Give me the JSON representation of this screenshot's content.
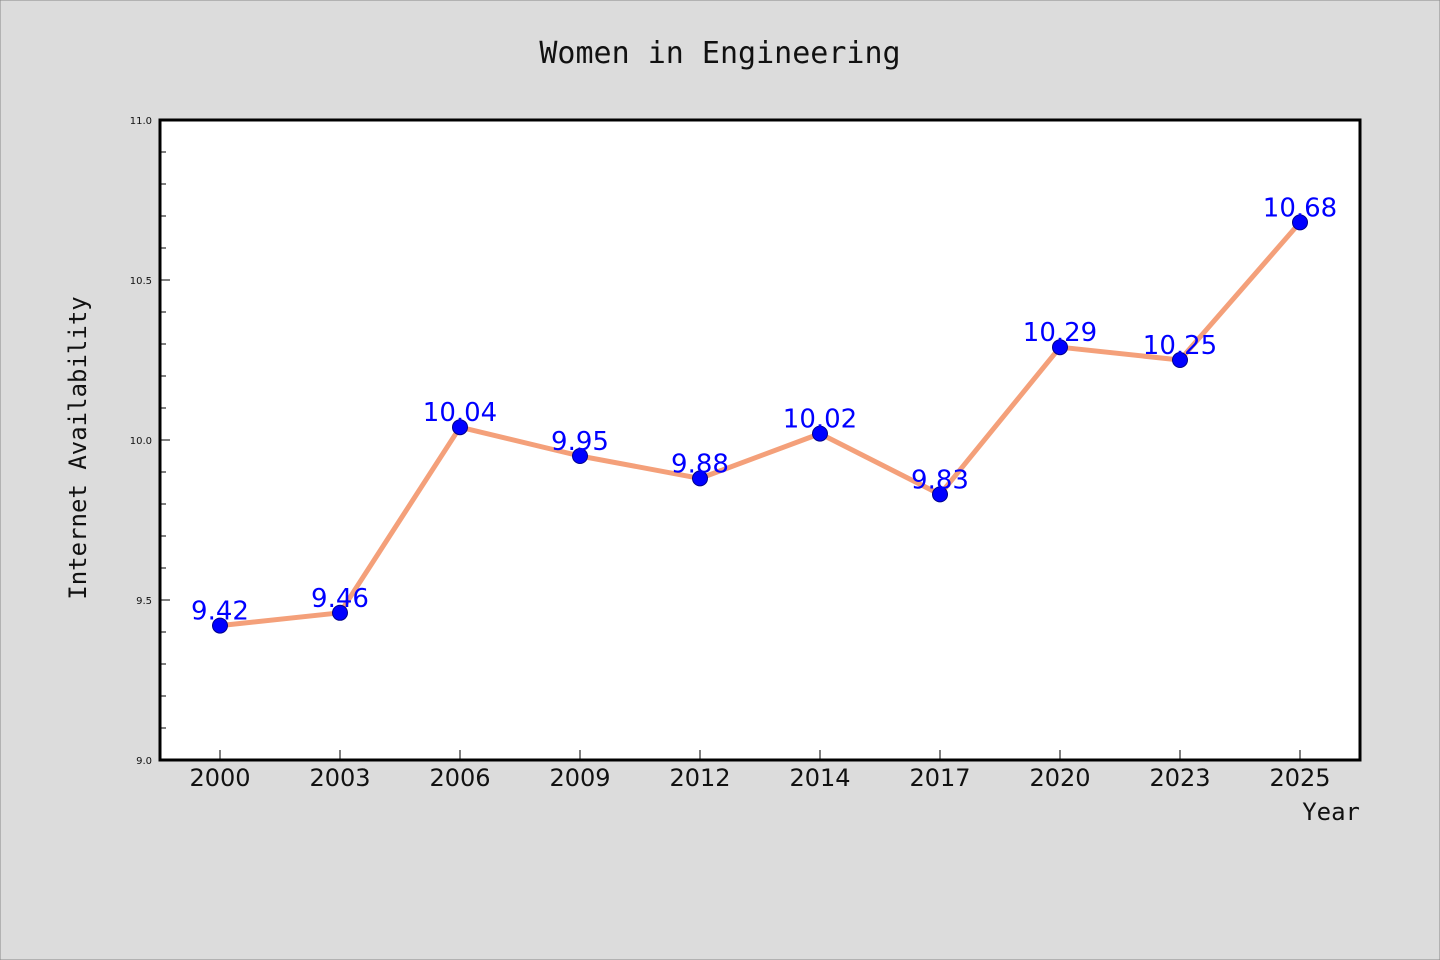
{
  "chart_data": {
    "type": "line",
    "title": "Women in Engineering",
    "xlabel": "Year",
    "ylabel": "Internet Availability",
    "categories": [
      "2000",
      "2003",
      "2006",
      "2009",
      "2012",
      "2014",
      "2017",
      "2020",
      "2023",
      "2025"
    ],
    "values": [
      9.42,
      9.46,
      10.04,
      9.95,
      9.88,
      10.02,
      9.83,
      10.29,
      10.25,
      10.68
    ],
    "data_labels": [
      "9.42",
      "9.46",
      "10.04",
      "9.95",
      "9.88",
      "10.02",
      "9.83",
      "10.29",
      "10.25",
      "10.68"
    ],
    "ylim": [
      9.0,
      11.0
    ],
    "yticks": [
      9.0,
      9.5,
      10.0,
      10.5,
      11.0
    ],
    "ytick_labels": [
      "9.0",
      "9.5",
      "10.0",
      "10.5",
      "11.0"
    ],
    "grid": false,
    "legend": "none",
    "colors": {
      "line": "#f4a07a",
      "marker": "#0000ff",
      "data_label": "#0000ff",
      "plot_background": "#ffffff",
      "figure_background": "#dcdcdc"
    }
  }
}
